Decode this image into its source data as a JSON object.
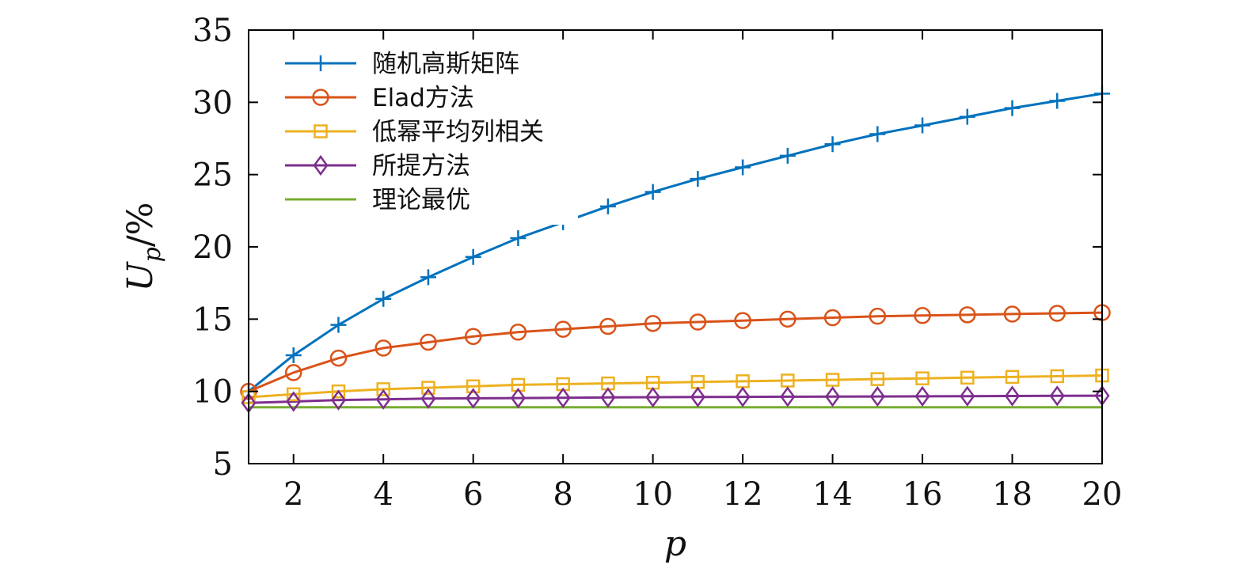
{
  "chart_data": {
    "type": "line",
    "title": "",
    "xlabel": "p",
    "ylabel": "Up/%",
    "ylabel_main": "U",
    "ylabel_sub": "p",
    "ylabel_rest": "/%",
    "xlim": [
      1,
      20
    ],
    "ylim": [
      5,
      35
    ],
    "xticks": [
      2,
      4,
      6,
      8,
      10,
      12,
      14,
      16,
      18,
      20
    ],
    "yticks": [
      5,
      10,
      15,
      20,
      25,
      30,
      35
    ],
    "grid": false,
    "legend_position": "top-left",
    "x": [
      1,
      2,
      3,
      4,
      5,
      6,
      7,
      8,
      9,
      10,
      11,
      12,
      13,
      14,
      15,
      16,
      17,
      18,
      19,
      20
    ],
    "series": [
      {
        "name": "随机高斯矩阵",
        "color": "#0072BD",
        "marker": "plus",
        "values": [
          10.0,
          12.5,
          14.6,
          16.4,
          17.9,
          19.3,
          20.6,
          21.7,
          22.8,
          23.8,
          24.7,
          25.5,
          26.3,
          27.1,
          27.8,
          28.4,
          29.0,
          29.6,
          30.1,
          30.6
        ]
      },
      {
        "name": "Elad方法",
        "color": "#D95319",
        "marker": "circle",
        "values": [
          10.0,
          11.3,
          12.3,
          13.0,
          13.4,
          13.8,
          14.1,
          14.3,
          14.5,
          14.7,
          14.8,
          14.9,
          15.0,
          15.1,
          15.2,
          15.25,
          15.3,
          15.35,
          15.4,
          15.45
        ]
      },
      {
        "name": "低幂平均列相关",
        "color": "#EDB120",
        "marker": "square",
        "values": [
          9.6,
          9.8,
          10.0,
          10.15,
          10.25,
          10.35,
          10.45,
          10.5,
          10.55,
          10.6,
          10.65,
          10.7,
          10.75,
          10.8,
          10.85,
          10.9,
          10.95,
          11.0,
          11.05,
          11.1
        ]
      },
      {
        "name": "所提方法",
        "color": "#7E2F8E",
        "marker": "diamond",
        "values": [
          9.2,
          9.3,
          9.4,
          9.45,
          9.5,
          9.52,
          9.54,
          9.56,
          9.58,
          9.6,
          9.61,
          9.62,
          9.63,
          9.64,
          9.65,
          9.66,
          9.67,
          9.68,
          9.69,
          9.7
        ]
      },
      {
        "name": "理论最优",
        "color": "#77AC30",
        "marker": "none",
        "values": [
          8.9,
          8.9,
          8.9,
          8.9,
          8.9,
          8.9,
          8.9,
          8.9,
          8.9,
          8.9,
          8.9,
          8.9,
          8.9,
          8.9,
          8.9,
          8.9,
          8.9,
          8.9,
          8.9,
          8.9
        ]
      }
    ]
  }
}
